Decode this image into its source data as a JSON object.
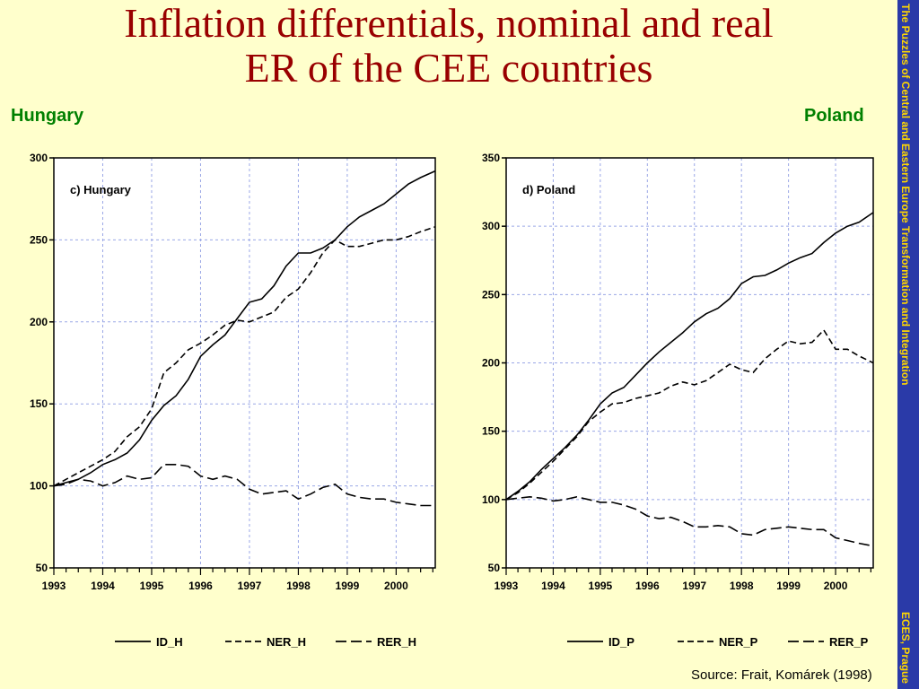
{
  "slide": {
    "title_line1": "Inflation differentials, nominal and real",
    "title_line2": "ER of the CEE countries",
    "left_country": "Hungary",
    "right_country": "Poland",
    "source": "Source: Frait, Komárek (1998)",
    "sidebar_top": "The Puzzles of Central and Eastern Europe Transformation and Integration",
    "sidebar_bottom": "ECES, Prague",
    "colors": {
      "background": "#ffffcc",
      "title": "#990000",
      "country": "#008000",
      "sidebar": "#2a3aa8",
      "sidebar_text": "#ffd700"
    }
  },
  "chart_data": [
    {
      "type": "line",
      "title": "c) Hungary",
      "xlabel": "",
      "ylabel": "",
      "x_ticks": [
        "1993",
        "1994",
        "1995",
        "1996",
        "1997",
        "1998",
        "1999",
        "2000"
      ],
      "y_ticks": [
        "300",
        "250",
        "200",
        "150",
        "100",
        "50"
      ],
      "xlim": [
        1993,
        2000.8
      ],
      "ylim": [
        50,
        300
      ],
      "grid": true,
      "legend_position": "bottom",
      "series": [
        {
          "name": "ID_H",
          "style": "solid",
          "x": [
            1993,
            1993.25,
            1993.5,
            1993.75,
            1994,
            1994.25,
            1994.5,
            1994.75,
            1995,
            1995.25,
            1995.5,
            1995.75,
            1996,
            1996.25,
            1996.5,
            1996.75,
            1997,
            1997.25,
            1997.5,
            1997.75,
            1998,
            1998.25,
            1998.5,
            1998.75,
            1999,
            1999.25,
            1999.5,
            1999.75,
            2000,
            2000.25,
            2000.5,
            2000.8
          ],
          "y": [
            100,
            102,
            104,
            108,
            113,
            116,
            120,
            128,
            140,
            149,
            155,
            165,
            179,
            186,
            192,
            202,
            212,
            214,
            222,
            234,
            242,
            242,
            245,
            250,
            258,
            264,
            268,
            272,
            278,
            284,
            288,
            292
          ]
        },
        {
          "name": "NER_H",
          "style": "dashed",
          "x": [
            1993,
            1993.25,
            1993.5,
            1993.75,
            1994,
            1994.25,
            1994.5,
            1994.75,
            1995,
            1995.25,
            1995.5,
            1995.75,
            1996,
            1996.25,
            1996.5,
            1996.75,
            1997,
            1997.25,
            1997.5,
            1997.75,
            1998,
            1998.25,
            1998.5,
            1998.75,
            1999,
            1999.25,
            1999.5,
            1999.75,
            2000,
            2000.25,
            2000.5,
            2000.8
          ],
          "y": [
            100,
            104,
            108,
            112,
            116,
            121,
            130,
            136,
            147,
            169,
            175,
            183,
            187,
            192,
            198,
            201,
            200,
            203,
            206,
            215,
            220,
            230,
            242,
            250,
            246,
            246,
            248,
            250,
            250,
            252,
            255,
            258
          ]
        },
        {
          "name": "RER_H",
          "style": "dash-long",
          "x": [
            1993,
            1993.25,
            1993.5,
            1993.75,
            1994,
            1994.25,
            1994.5,
            1994.75,
            1995,
            1995.25,
            1995.5,
            1995.75,
            1996,
            1996.25,
            1996.5,
            1996.75,
            1997,
            1997.25,
            1997.5,
            1997.75,
            1998,
            1998.25,
            1998.5,
            1998.75,
            1999,
            1999.25,
            1999.5,
            1999.75,
            2000,
            2000.25,
            2000.5,
            2000.8
          ],
          "y": [
            100,
            101,
            104,
            103,
            100,
            102,
            106,
            104,
            105,
            113,
            113,
            112,
            106,
            104,
            106,
            104,
            98,
            95,
            96,
            97,
            92,
            95,
            99,
            101,
            95,
            93,
            92,
            92,
            90,
            89,
            88,
            88
          ]
        }
      ]
    },
    {
      "type": "line",
      "title": "d) Poland",
      "xlabel": "",
      "ylabel": "",
      "x_ticks": [
        "1993",
        "1994",
        "1995",
        "1996",
        "1997",
        "1998",
        "1999",
        "2000"
      ],
      "y_ticks": [
        "350",
        "300",
        "250",
        "200",
        "150",
        "100",
        "50"
      ],
      "xlim": [
        1993,
        2000.8
      ],
      "ylim": [
        50,
        350
      ],
      "grid": true,
      "legend_position": "bottom",
      "series": [
        {
          "name": "ID_P",
          "style": "solid",
          "x": [
            1993,
            1993.25,
            1993.5,
            1993.75,
            1994,
            1994.25,
            1994.5,
            1994.75,
            1995,
            1995.25,
            1995.5,
            1995.75,
            1996,
            1996.25,
            1996.5,
            1996.75,
            1997,
            1997.25,
            1997.5,
            1997.75,
            1998,
            1998.25,
            1998.5,
            1998.75,
            1999,
            1999.25,
            1999.5,
            1999.75,
            2000,
            2000.25,
            2000.5,
            2000.8
          ],
          "y": [
            100,
            106,
            113,
            122,
            130,
            138,
            147,
            158,
            170,
            178,
            182,
            191,
            200,
            208,
            215,
            222,
            230,
            236,
            240,
            247,
            258,
            263,
            264,
            268,
            273,
            277,
            280,
            288,
            295,
            300,
            303,
            310
          ]
        },
        {
          "name": "NER_P",
          "style": "dashed",
          "x": [
            1993,
            1993.25,
            1993.5,
            1993.75,
            1994,
            1994.25,
            1994.5,
            1994.75,
            1995,
            1995.25,
            1995.5,
            1995.75,
            1996,
            1996.25,
            1996.5,
            1996.75,
            1997,
            1997.25,
            1997.5,
            1997.75,
            1998,
            1998.25,
            1998.5,
            1998.75,
            1999,
            1999.25,
            1999.5,
            1999.75,
            2000,
            2000.25,
            2000.5,
            2000.8
          ],
          "y": [
            100,
            105,
            112,
            120,
            128,
            137,
            146,
            157,
            164,
            170,
            171,
            174,
            176,
            178,
            183,
            186,
            184,
            187,
            193,
            199,
            195,
            193,
            203,
            210,
            216,
            214,
            215,
            224,
            210,
            210,
            205,
            200
          ]
        },
        {
          "name": "RER_P",
          "style": "dash-long",
          "x": [
            1993,
            1993.25,
            1993.5,
            1993.75,
            1994,
            1994.25,
            1994.5,
            1994.75,
            1995,
            1995.25,
            1995.5,
            1995.75,
            1996,
            1996.25,
            1996.5,
            1996.75,
            1997,
            1997.25,
            1997.5,
            1997.75,
            1998,
            1998.25,
            1998.5,
            1998.75,
            1999,
            1999.25,
            1999.5,
            1999.75,
            2000,
            2000.25,
            2000.5,
            2000.8
          ],
          "y": [
            100,
            101,
            102,
            101,
            99,
            100,
            102,
            100,
            98,
            98,
            96,
            93,
            88,
            86,
            87,
            84,
            80,
            80,
            81,
            80,
            75,
            74,
            78,
            79,
            80,
            79,
            78,
            78,
            72,
            70,
            68,
            66
          ]
        }
      ]
    }
  ]
}
